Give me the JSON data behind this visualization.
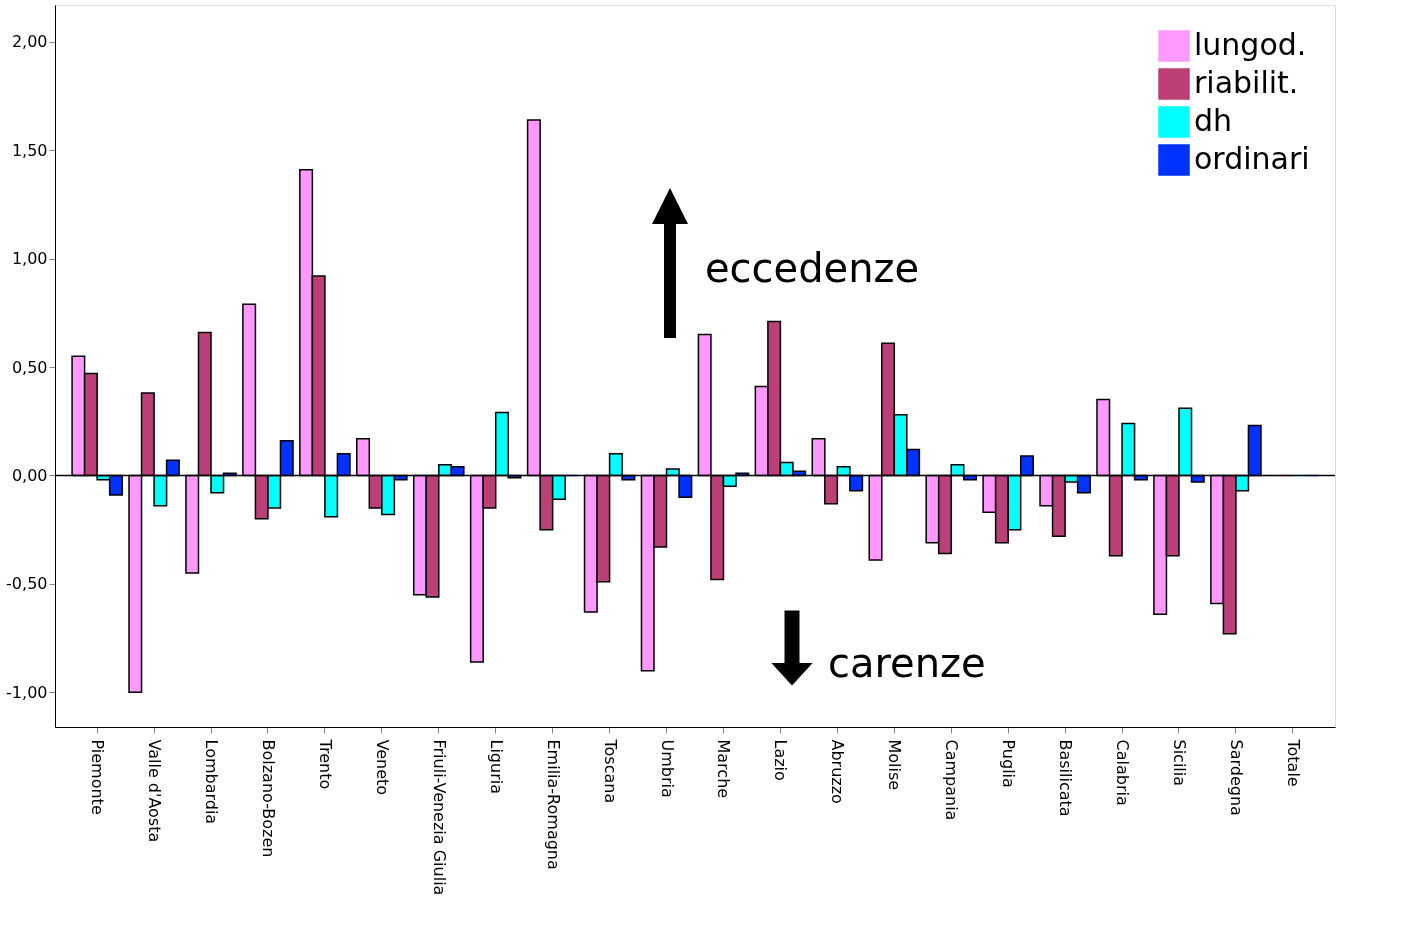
{
  "chart_data": {
    "type": "bar",
    "categories": [
      "Piemonte",
      "Valle d'Aosta",
      "Lombardia",
      "Bolzano-Bozen",
      "Trento",
      "Veneto",
      "Friuli-Venezia Giulia",
      "Liguria",
      "Emilia-Romagna",
      "Toscana",
      "Umbria",
      "Marche",
      "Lazio",
      "Abruzzo",
      "Molise",
      "Campania",
      "Puglia",
      "Basilicata",
      "Calabria",
      "Sicilia",
      "Sardegna",
      "Totale"
    ],
    "series": [
      {
        "name": "lungod.",
        "color": "#ff99ff",
        "values": [
          0.55,
          -1.0,
          -0.45,
          0.79,
          1.41,
          0.17,
          -0.55,
          -0.86,
          1.64,
          -0.63,
          -0.9,
          0.65,
          0.41,
          0.17,
          -0.39,
          -0.31,
          -0.17,
          -0.14,
          0.35,
          -0.64,
          -0.59,
          0
        ]
      },
      {
        "name": "riabilit.",
        "color": "#bb4077",
        "values": [
          0.47,
          0.38,
          0.66,
          -0.2,
          0.92,
          -0.15,
          -0.56,
          -0.15,
          -0.25,
          -0.49,
          -0.33,
          -0.48,
          0.71,
          -0.13,
          0.61,
          -0.36,
          -0.31,
          -0.28,
          -0.37,
          -0.37,
          -0.73,
          0
        ]
      },
      {
        "name": "dh",
        "color": "#00ffff",
        "values": [
          -0.02,
          -0.14,
          -0.08,
          -0.15,
          -0.19,
          -0.18,
          0.05,
          0.29,
          -0.11,
          0.1,
          0.03,
          -0.05,
          0.06,
          0.04,
          0.28,
          0.05,
          -0.25,
          -0.03,
          0.24,
          0.31,
          -0.07,
          0
        ]
      },
      {
        "name": "ordinari",
        "color": "#0033ff",
        "values": [
          -0.09,
          0.07,
          0.01,
          0.16,
          0.1,
          -0.02,
          0.04,
          -0.01,
          0,
          -0.02,
          -0.1,
          0.01,
          0.02,
          -0.07,
          0.12,
          -0.02,
          0.09,
          -0.08,
          -0.02,
          -0.03,
          0.23,
          0
        ]
      }
    ],
    "ylim": [
      -1.16,
      2.17
    ],
    "yticks": [
      {
        "value": -1,
        "label": "-1,00"
      },
      {
        "value": -0.5,
        "label": "-0,50"
      },
      {
        "value": 0,
        "label": "0,00"
      },
      {
        "value": 0.5,
        "label": "0,50"
      },
      {
        "value": 1,
        "label": "1,00"
      },
      {
        "value": 1.5,
        "label": "1,50"
      },
      {
        "value": 2,
        "label": "2,00"
      }
    ],
    "ref_lines": [
      {
        "axis": "y",
        "value": 0,
        "color": "#000000"
      }
    ],
    "annotations": [
      "eccedenze",
      "carenze"
    ],
    "legend": "top right",
    "grid": false
  }
}
